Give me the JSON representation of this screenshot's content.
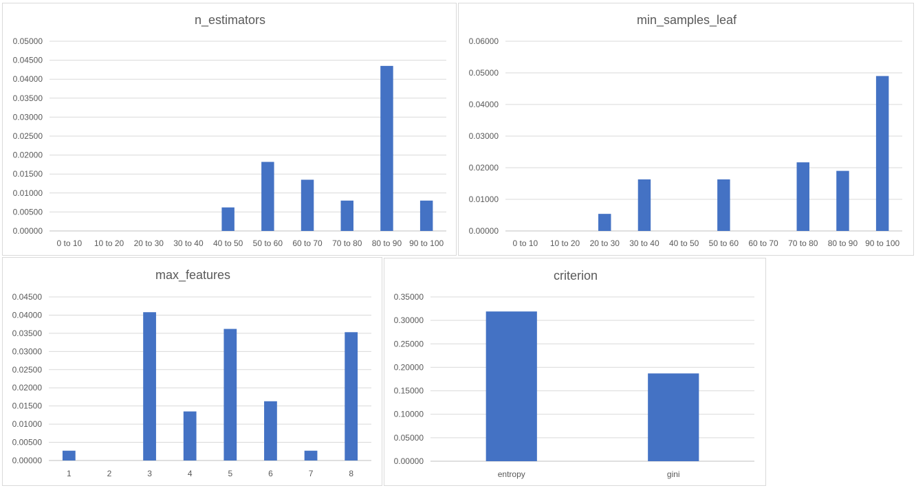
{
  "chart_data": [
    {
      "type": "bar",
      "title": "n_estimators",
      "categories": [
        "0 to 10",
        "10 to 20",
        "20 to 30",
        "30 to 40",
        "40 to 50",
        "50 to  60",
        "60 to 70",
        "70 to 80",
        "80 to 90",
        "90 to 100"
      ],
      "values": [
        0,
        0,
        0,
        0,
        0.0062,
        0.0182,
        0.0135,
        0.008,
        0.0435,
        0.008
      ],
      "ylim": [
        0,
        0.05
      ],
      "ytick_step": 0.005,
      "yticks": [
        "0.00000",
        "0.00500",
        "0.01000",
        "0.01500",
        "0.02000",
        "0.02500",
        "0.03000",
        "0.03500",
        "0.04000",
        "0.04500",
        "0.05000"
      ],
      "color": "#4472c4",
      "grid": true,
      "legend": "none"
    },
    {
      "type": "bar",
      "title": "min_samples_leaf",
      "categories": [
        "0 to 10",
        "10 to 20",
        "20 to 30",
        "30 to 40",
        "40 to 50",
        "50 to  60",
        "60 to 70",
        "70 to 80",
        "80 to 90",
        "90 to 100"
      ],
      "values": [
        0,
        0,
        0.0054,
        0.0163,
        0,
        0.0163,
        0,
        0.0217,
        0.019,
        0.049
      ],
      "ylim": [
        0,
        0.06
      ],
      "ytick_step": 0.01,
      "yticks": [
        "0.00000",
        "0.01000",
        "0.02000",
        "0.03000",
        "0.04000",
        "0.05000",
        "0.06000"
      ],
      "color": "#4472c4",
      "grid": true,
      "legend": "none"
    },
    {
      "type": "bar",
      "title": "max_features",
      "categories": [
        "1",
        "2",
        "3",
        "4",
        "5",
        "6",
        "7",
        "8"
      ],
      "values": [
        0.0027,
        0,
        0.0408,
        0.0135,
        0.0362,
        0.0163,
        0.0027,
        0.0353
      ],
      "ylim": [
        0,
        0.045
      ],
      "ytick_step": 0.005,
      "yticks": [
        "0.00000",
        "0.00500",
        "0.01000",
        "0.01500",
        "0.02000",
        "0.02500",
        "0.03000",
        "0.03500",
        "0.04000",
        "0.04500"
      ],
      "color": "#4472c4",
      "grid": true,
      "legend": "none"
    },
    {
      "type": "bar",
      "title": "criterion",
      "categories": [
        "entropy",
        "gini"
      ],
      "values": [
        0.319,
        0.187
      ],
      "ylim": [
        0,
        0.35
      ],
      "ytick_step": 0.05,
      "yticks": [
        "0.00000",
        "0.05000",
        "0.10000",
        "0.15000",
        "0.20000",
        "0.25000",
        "0.30000",
        "0.35000"
      ],
      "color": "#4472c4",
      "grid": true,
      "legend": "none"
    }
  ]
}
